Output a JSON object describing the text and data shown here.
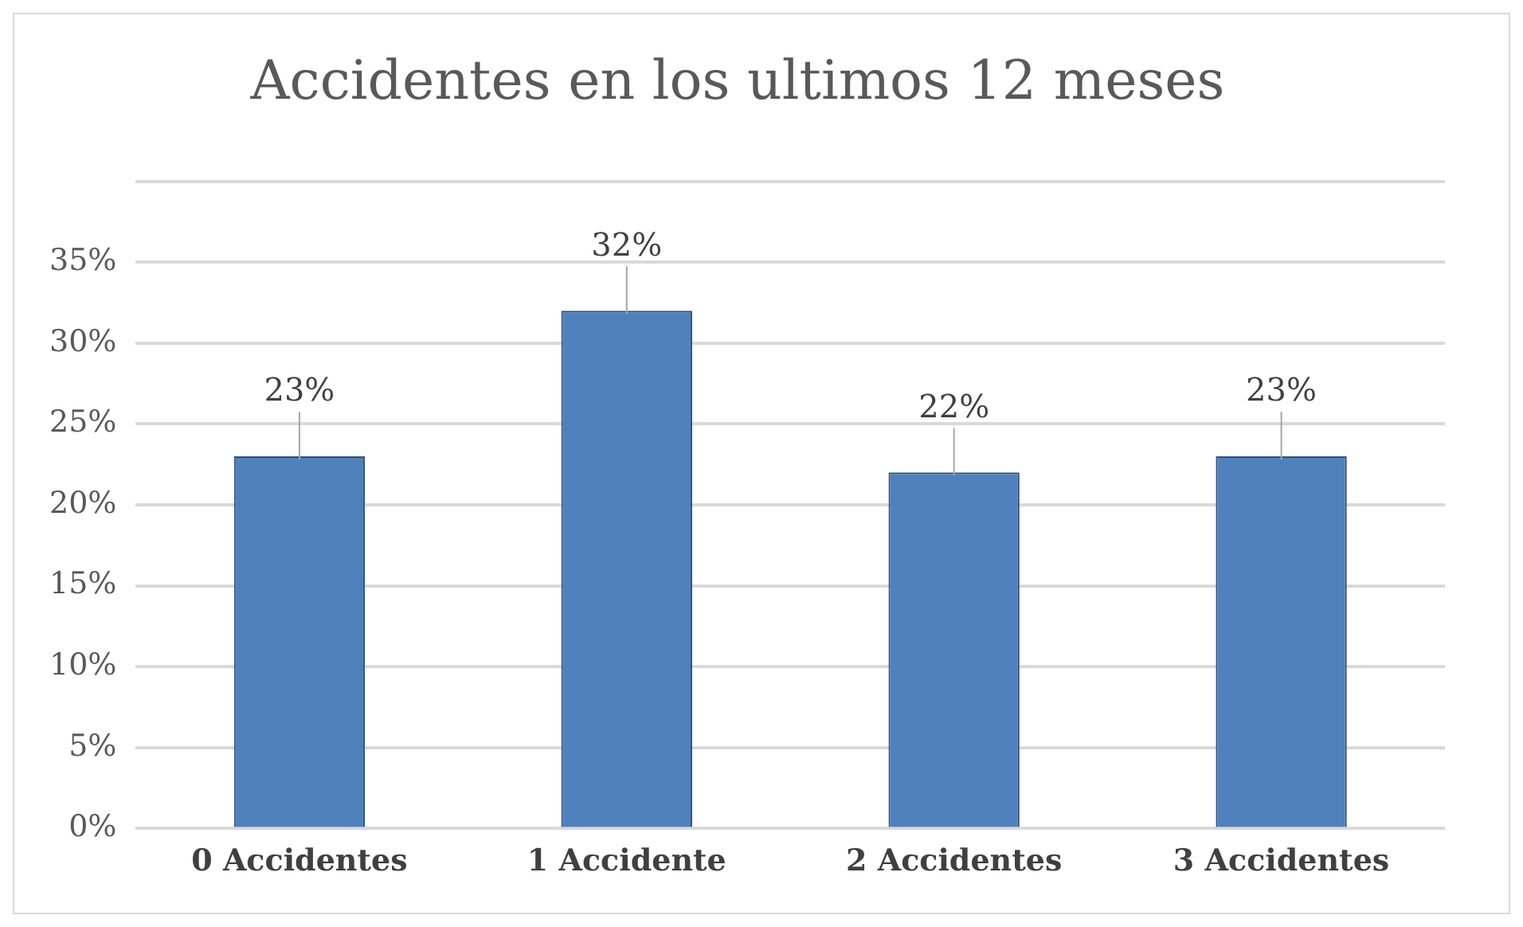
{
  "chart_data": {
    "type": "bar",
    "title": "Accidentes en los ultimos 12 meses",
    "categories": [
      "0 Accidentes",
      "1 Accidente",
      "2 Accidentes",
      "3 Accidentes"
    ],
    "series": [
      {
        "color": "#4f81bd",
        "values": [
          23,
          32,
          22,
          23
        ],
        "value_labels": [
          "23%",
          "32%",
          "22%",
          "23%"
        ]
      }
    ],
    "ylim": [
      0,
      40
    ],
    "yticks": [
      {
        "value": 0,
        "label": "0%"
      },
      {
        "value": 5,
        "label": "5%"
      },
      {
        "value": 10,
        "label": "10%"
      },
      {
        "value": 15,
        "label": "15%"
      },
      {
        "value": 20,
        "label": "20%"
      },
      {
        "value": 25,
        "label": "25%"
      },
      {
        "value": 30,
        "label": "30%"
      },
      {
        "value": 35,
        "label": "35%"
      },
      {
        "value": 40,
        "label": null
      }
    ],
    "grid": "y",
    "legend": false
  }
}
